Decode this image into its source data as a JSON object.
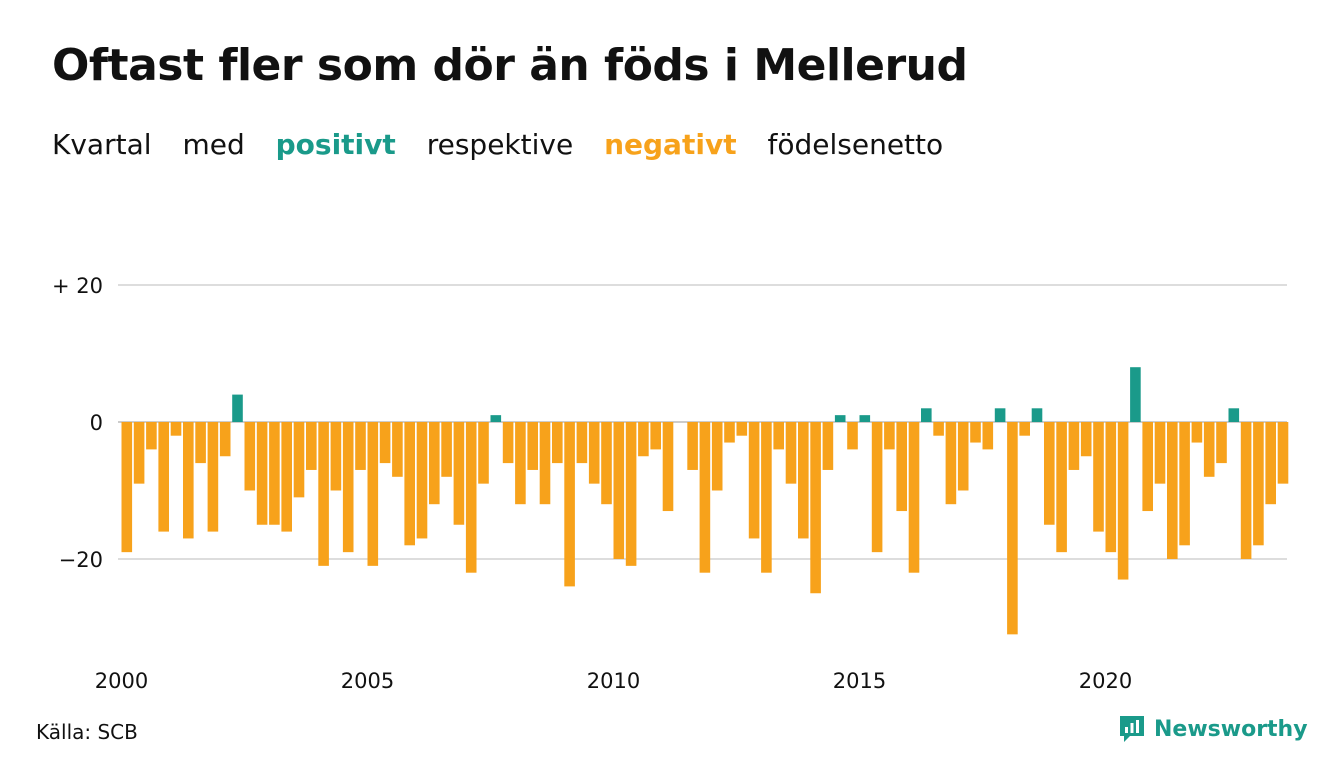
{
  "title": "Oftast fler som dör än föds i Mellerud",
  "subtitle": {
    "part1": "Kvartal",
    "part2": "med",
    "positive": "positivt",
    "part3": "respektive",
    "negative": "negativt",
    "part4": "födelsenetto"
  },
  "source": "Källa: SCB",
  "logo": {
    "text": "Newsworthy",
    "icon": "newsworthy-logo-icon"
  },
  "colors": {
    "positive": "#1a9a8a",
    "negative": "#f7a21b",
    "grid": "#dddddd",
    "text": "#111111"
  },
  "chart_data": {
    "type": "bar",
    "x_start": "2000 Q1",
    "y_tick_labels": [
      "+ 20",
      "0",
      "−20"
    ],
    "y_ticks": [
      20,
      0,
      -20
    ],
    "ylim": [
      -31,
      20
    ],
    "x_tick_labels": [
      "2000",
      "2005",
      "2010",
      "2015",
      "2020"
    ],
    "values": [
      -19,
      -9,
      -4,
      -16,
      -2,
      -17,
      -6,
      -16,
      -5,
      4,
      -10,
      -15,
      -15,
      -16,
      -11,
      -7,
      -21,
      -10,
      -19,
      -7,
      -21,
      -6,
      -8,
      -18,
      -17,
      -12,
      -8,
      -15,
      -22,
      -9,
      1,
      -6,
      -12,
      -7,
      -12,
      -6,
      -24,
      -6,
      -9,
      -12,
      -20,
      -21,
      -5,
      -4,
      -13,
      0,
      -7,
      -22,
      -10,
      -3,
      -2,
      -17,
      -22,
      -4,
      -9,
      -17,
      -25,
      -7,
      1,
      -4,
      1,
      -19,
      -4,
      -13,
      -22,
      2,
      -2,
      -12,
      -10,
      -3,
      -4,
      2,
      -31,
      -2,
      2,
      -15,
      -19,
      -7,
      -5,
      -16,
      -19,
      -23,
      8,
      -13,
      -9,
      -20,
      -18,
      -3,
      -8,
      -6,
      2,
      -20,
      -18,
      -12,
      -9
    ]
  }
}
